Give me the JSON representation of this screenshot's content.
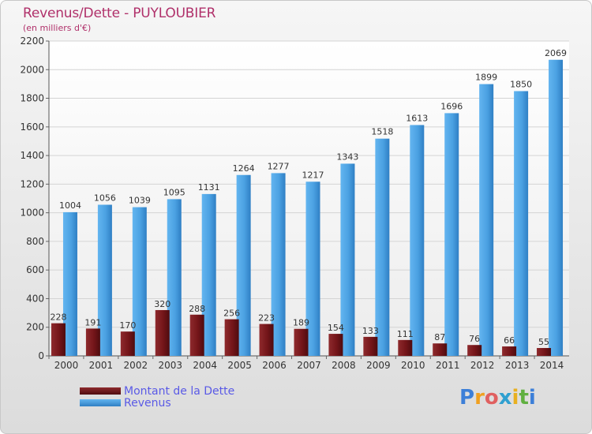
{
  "header": {
    "title": "Revenus/Dette - PUYLOUBIER",
    "subtitle": "(en milliers d'€)"
  },
  "legend": {
    "debt_label": "Montant de la Dette",
    "revenue_label": "Revenus"
  },
  "logo": {
    "letters": [
      "P",
      "r",
      "o",
      "x",
      "i",
      "t",
      "i"
    ]
  },
  "colors": {
    "debt": "#7a1518",
    "revenue": "#4aa3e6",
    "title": "#b0306a",
    "legend_text": "#5a5ae6"
  },
  "chart_data": {
    "type": "bar",
    "title": "Revenus/Dette - PUYLOUBIER",
    "subtitle": "(en milliers d'€)",
    "categories": [
      "2000",
      "2001",
      "2002",
      "2003",
      "2004",
      "2005",
      "2006",
      "2007",
      "2008",
      "2009",
      "2010",
      "2011",
      "2012",
      "2013",
      "2014"
    ],
    "series": [
      {
        "name": "Montant de la Dette",
        "values": [
          228,
          191,
          170,
          320,
          288,
          256,
          223,
          189,
          154,
          133,
          111,
          87,
          76,
          66,
          55
        ]
      },
      {
        "name": "Revenus",
        "values": [
          1004,
          1056,
          1039,
          1095,
          1131,
          1264,
          1277,
          1217,
          1343,
          1518,
          1613,
          1696,
          1899,
          1850,
          2069
        ]
      }
    ],
    "ylim": [
      0,
      2200
    ],
    "yticks": [
      0,
      200,
      400,
      600,
      800,
      1000,
      1200,
      1400,
      1600,
      1800,
      2000,
      2200
    ],
    "grid": true,
    "legend_position": "bottom-left"
  }
}
